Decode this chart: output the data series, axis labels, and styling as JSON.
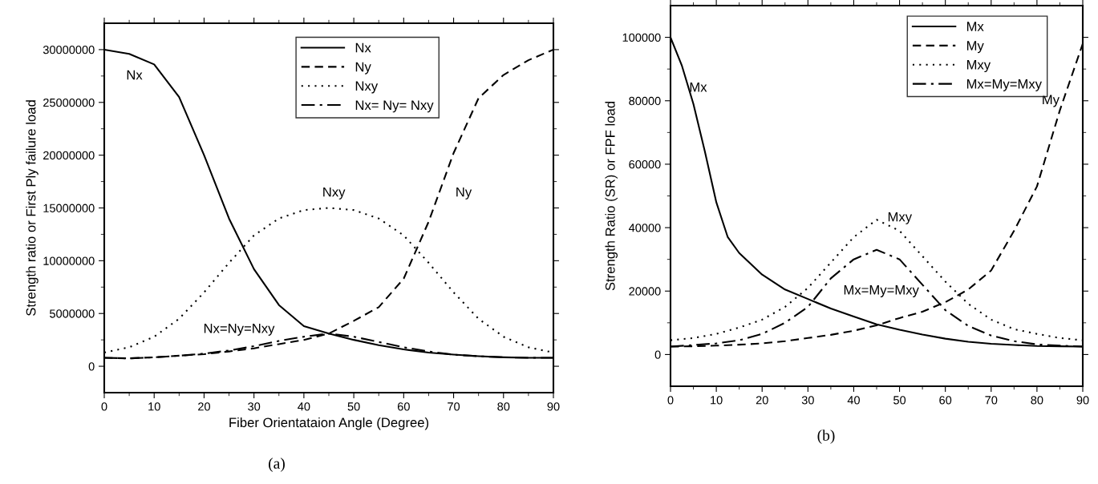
{
  "chart_data": [
    {
      "type": "line",
      "xlabel": "Fiber Orientataion Angle (Degree)",
      "ylabel": "Strength ratio or First Ply failure load",
      "x": [
        0,
        5,
        10,
        15,
        20,
        25,
        30,
        35,
        40,
        45,
        50,
        55,
        60,
        65,
        70,
        75,
        80,
        85,
        90
      ],
      "series": [
        {
          "name": "Nx",
          "color": "#000000",
          "line_style": "solid",
          "values": [
            30000000,
            29600000,
            28600000,
            25500000,
            20000000,
            14000000,
            9200000,
            5800000,
            3800000,
            3100000,
            2500000,
            2000000,
            1600000,
            1300000,
            1100000,
            950000,
            850000,
            800000,
            800000
          ]
        },
        {
          "name": "Ny",
          "color": "#000000",
          "line_style": "dashed",
          "values": [
            800000,
            750000,
            850000,
            1000000,
            1150000,
            1400000,
            1700000,
            2100000,
            2500000,
            3100000,
            4300000,
            5600000,
            8300000,
            13700000,
            20200000,
            25400000,
            27600000,
            29000000,
            30000000
          ]
        },
        {
          "name": "Nxy",
          "color": "#000000",
          "line_style": "dotted",
          "values": [
            1300000,
            1800000,
            2800000,
            4500000,
            7000000,
            9800000,
            12400000,
            14000000,
            14800000,
            15000000,
            14800000,
            14000000,
            12400000,
            9800000,
            7000000,
            4500000,
            2800000,
            1800000,
            1300000
          ]
        },
        {
          "name": "Nx= Ny= Nxy",
          "color": "#000000",
          "line_style": "dashdot",
          "values": [
            800000,
            750000,
            850000,
            1000000,
            1200000,
            1500000,
            1900000,
            2400000,
            2800000,
            3100000,
            2800000,
            2300000,
            1800000,
            1400000,
            1100000,
            950000,
            850000,
            800000,
            800000
          ]
        }
      ],
      "xlim": [
        0,
        90
      ],
      "xticks": [
        0,
        10,
        20,
        30,
        40,
        50,
        60,
        70,
        80,
        90
      ],
      "ylim": [
        -2500000,
        32500000
      ],
      "yticks": [
        0,
        5000000,
        10000000,
        15000000,
        20000000,
        25000000,
        30000000
      ],
      "legend": "top right",
      "grid": false,
      "marker": "none",
      "annotations": [
        "Nx",
        "Nxy",
        "Ny",
        "Nx=Ny=Nxy",
        "(a)"
      ]
    },
    {
      "type": "line",
      "ylabel": "Strength Ratio (SR) or FPF load",
      "x": [
        0,
        5,
        10,
        15,
        20,
        25,
        30,
        35,
        40,
        45,
        50,
        55,
        60,
        65,
        70,
        75,
        80,
        85,
        90
      ],
      "series": [
        {
          "name": "Mx",
          "color": "#000000",
          "line_style": "solid",
          "x": [
            0,
            2.5,
            5,
            7.5,
            10,
            12.5,
            15,
            20,
            25,
            30,
            35,
            40,
            45,
            50,
            55,
            60,
            65,
            70,
            75,
            80,
            85,
            90
          ],
          "values": [
            100000,
            91000,
            79000,
            64000,
            48000,
            37000,
            32000,
            25200,
            20500,
            17500,
            14500,
            12000,
            9500,
            7800,
            6300,
            5000,
            4000,
            3400,
            3000,
            2700,
            2600,
            2500
          ]
        },
        {
          "name": "My",
          "color": "#000000",
          "line_style": "dashed",
          "values": [
            2500,
            2600,
            2800,
            3100,
            3500,
            4200,
            5200,
            6200,
            7500,
            9200,
            11500,
            13500,
            16500,
            20500,
            26500,
            39000,
            53000,
            77000,
            98000
          ]
        },
        {
          "name": "Mxy",
          "color": "#000000",
          "line_style": "dotted",
          "values": [
            4500,
            5200,
            6500,
            8500,
            11000,
            15000,
            21000,
            29000,
            37000,
            42500,
            39000,
            31000,
            23000,
            16000,
            11000,
            8000,
            6500,
            5200,
            4500
          ]
        },
        {
          "name": "Mx=My=Mxy",
          "color": "#000000",
          "line_style": "dashdot",
          "values": [
            2500,
            3000,
            3500,
            4500,
            6500,
            10000,
            15000,
            24000,
            30000,
            33000,
            30000,
            22000,
            14000,
            9000,
            6000,
            4200,
            3200,
            2800,
            2500
          ]
        }
      ],
      "xlim": [
        0,
        90
      ],
      "xticks": [
        0,
        10,
        20,
        30,
        40,
        50,
        60,
        70,
        80,
        90
      ],
      "ylim": [
        -10000,
        110000
      ],
      "yticks": [
        0,
        20000,
        40000,
        60000,
        80000,
        100000
      ],
      "legend": "top right",
      "grid": false,
      "marker": "none",
      "annotations": [
        "Mx",
        "My",
        "Mxy",
        "Mx=My=Mxy",
        "(b)"
      ]
    }
  ]
}
